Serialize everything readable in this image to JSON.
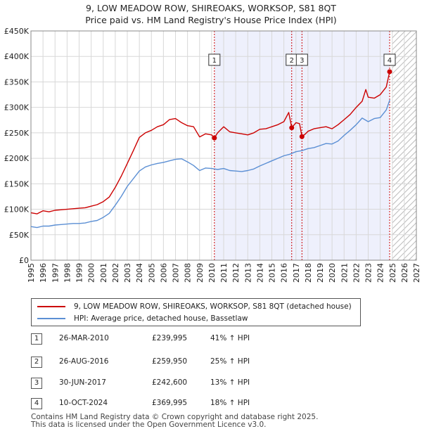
{
  "title": {
    "line1": "9, LOW MEADOW ROW, SHIREOAKS, WORKSOP, S81 8QT",
    "line2": "Price paid vs. HM Land Registry's House Price Index (HPI)"
  },
  "chart_data": {
    "type": "line",
    "title": "9, LOW MEADOW ROW, SHIREOAKS, WORKSOP, S81 8QT — Price paid vs. HM Land Registry's House Price Index (HPI)",
    "xlabel": "",
    "ylabel": "",
    "xlim": [
      1995,
      2027
    ],
    "ylim": [
      0,
      450000
    ],
    "x_ticks": [
      "1995",
      "1996",
      "1997",
      "1998",
      "1999",
      "2000",
      "2001",
      "2002",
      "2003",
      "2004",
      "2005",
      "2006",
      "2007",
      "2008",
      "2009",
      "2010",
      "2011",
      "2012",
      "2013",
      "2014",
      "2015",
      "2016",
      "2017",
      "2018",
      "2019",
      "2020",
      "2021",
      "2022",
      "2023",
      "2024",
      "2025",
      "2026",
      "2027"
    ],
    "y_ticks": [
      {
        "value": 0,
        "label": "£0"
      },
      {
        "value": 50000,
        "label": "£50K"
      },
      {
        "value": 100000,
        "label": "£100K"
      },
      {
        "value": 150000,
        "label": "£150K"
      },
      {
        "value": 200000,
        "label": "£200K"
      },
      {
        "value": 250000,
        "label": "£250K"
      },
      {
        "value": 300000,
        "label": "£300K"
      },
      {
        "value": 350000,
        "label": "£350K"
      },
      {
        "value": 400000,
        "label": "£400K"
      },
      {
        "value": 450000,
        "label": "£450K"
      }
    ],
    "grid": true,
    "shaded_period": {
      "from": 2010.23,
      "to": 2024.78,
      "color": "#eef0fc"
    },
    "future_hatch": {
      "from": 2025.0,
      "to": 2027
    },
    "series": [
      {
        "name": "9, LOW MEADOW ROW, SHIREOAKS, WORKSOP, S81 8QT (detached house)",
        "color": "#cc0000",
        "x": [
          1995.0,
          1995.5,
          1996.0,
          1996.5,
          1997.0,
          1997.5,
          1998.0,
          1998.5,
          1999.0,
          1999.5,
          2000.0,
          2000.5,
          2001.0,
          2001.5,
          2002.0,
          2002.5,
          2003.0,
          2003.5,
          2004.0,
          2004.5,
          2005.0,
          2005.5,
          2006.0,
          2006.5,
          2007.0,
          2007.5,
          2008.0,
          2008.5,
          2009.0,
          2009.5,
          2010.0,
          2010.23,
          2010.5,
          2011.0,
          2011.5,
          2012.0,
          2012.5,
          2013.0,
          2013.5,
          2014.0,
          2014.5,
          2015.0,
          2015.5,
          2016.0,
          2016.4,
          2016.65,
          2017.0,
          2017.3,
          2017.5,
          2017.8,
          2018.0,
          2018.5,
          2019.0,
          2019.5,
          2020.0,
          2020.5,
          2021.0,
          2021.5,
          2022.0,
          2022.5,
          2022.8,
          2023.0,
          2023.5,
          2024.0,
          2024.5,
          2024.78
        ],
        "y": [
          93000,
          91000,
          97000,
          95000,
          98000,
          99000,
          100000,
          101000,
          102000,
          103000,
          106000,
          109000,
          115000,
          124000,
          143000,
          165000,
          190000,
          215000,
          241000,
          250000,
          255000,
          262000,
          266000,
          276000,
          278000,
          270000,
          264000,
          262000,
          242000,
          248000,
          246000,
          239995,
          250000,
          262000,
          252000,
          250000,
          248000,
          246000,
          250000,
          257000,
          258000,
          262000,
          266000,
          272000,
          290000,
          259950,
          270000,
          268000,
          242600,
          248000,
          253000,
          258000,
          260000,
          262000,
          258000,
          266000,
          276000,
          286000,
          300000,
          312000,
          335000,
          320000,
          318000,
          325000,
          340000,
          369995
        ]
      },
      {
        "name": "HPI: Average price, detached house, Bassetlaw",
        "color": "#5b8fd4",
        "x": [
          1995.0,
          1995.5,
          1996.0,
          1996.5,
          1997.0,
          1997.5,
          1998.0,
          1998.5,
          1999.0,
          1999.5,
          2000.0,
          2000.5,
          2001.0,
          2001.5,
          2002.0,
          2002.5,
          2003.0,
          2003.5,
          2004.0,
          2004.5,
          2005.0,
          2005.5,
          2006.0,
          2006.5,
          2007.0,
          2007.5,
          2008.0,
          2008.5,
          2009.0,
          2009.5,
          2010.0,
          2010.5,
          2011.0,
          2011.5,
          2012.0,
          2012.5,
          2013.0,
          2013.5,
          2014.0,
          2014.5,
          2015.0,
          2015.5,
          2016.0,
          2016.5,
          2017.0,
          2017.5,
          2018.0,
          2018.5,
          2019.0,
          2019.5,
          2020.0,
          2020.5,
          2021.0,
          2021.5,
          2022.0,
          2022.5,
          2023.0,
          2023.5,
          2024.0,
          2024.5,
          2024.8
        ],
        "y": [
          66000,
          64000,
          67000,
          67000,
          69000,
          70000,
          71000,
          72000,
          72000,
          73000,
          76000,
          78000,
          84000,
          92000,
          108000,
          125000,
          145000,
          160000,
          175000,
          183000,
          187000,
          190000,
          192000,
          195000,
          198000,
          199000,
          193000,
          186000,
          176000,
          181000,
          180000,
          178000,
          180000,
          176000,
          175000,
          174000,
          176000,
          179000,
          185000,
          190000,
          195000,
          200000,
          205000,
          208000,
          213000,
          215000,
          219000,
          221000,
          225000,
          229000,
          228000,
          234000,
          245000,
          255000,
          266000,
          279000,
          272000,
          278000,
          280000,
          295000,
          315000
        ]
      }
    ],
    "annotations": [
      {
        "id": "1",
        "x": 2010.23,
        "y": 239995
      },
      {
        "id": "2",
        "x": 2016.65,
        "y": 259950
      },
      {
        "id": "3",
        "x": 2017.5,
        "y": 242600
      },
      {
        "id": "4",
        "x": 2024.78,
        "y": 369995
      }
    ]
  },
  "legend": {
    "property_label": "9, LOW MEADOW ROW, SHIREOAKS, WORKSOP, S81 8QT (detached house)",
    "hpi_label": "HPI: Average price, detached house, Bassetlaw"
  },
  "transactions": [
    {
      "num": "1",
      "date": "26-MAR-2010",
      "price": "£239,995",
      "hpi": "41% ↑ HPI"
    },
    {
      "num": "2",
      "date": "26-AUG-2016",
      "price": "£259,950",
      "hpi": "25% ↑ HPI"
    },
    {
      "num": "3",
      "date": "30-JUN-2017",
      "price": "£242,600",
      "hpi": "13% ↑ HPI"
    },
    {
      "num": "4",
      "date": "10-OCT-2024",
      "price": "£369,995",
      "hpi": "18% ↑ HPI"
    }
  ],
  "footer": {
    "line1": "Contains HM Land Registry data © Crown copyright and database right 2025.",
    "line2": "This data is licensed under the Open Government Licence v3.0."
  }
}
